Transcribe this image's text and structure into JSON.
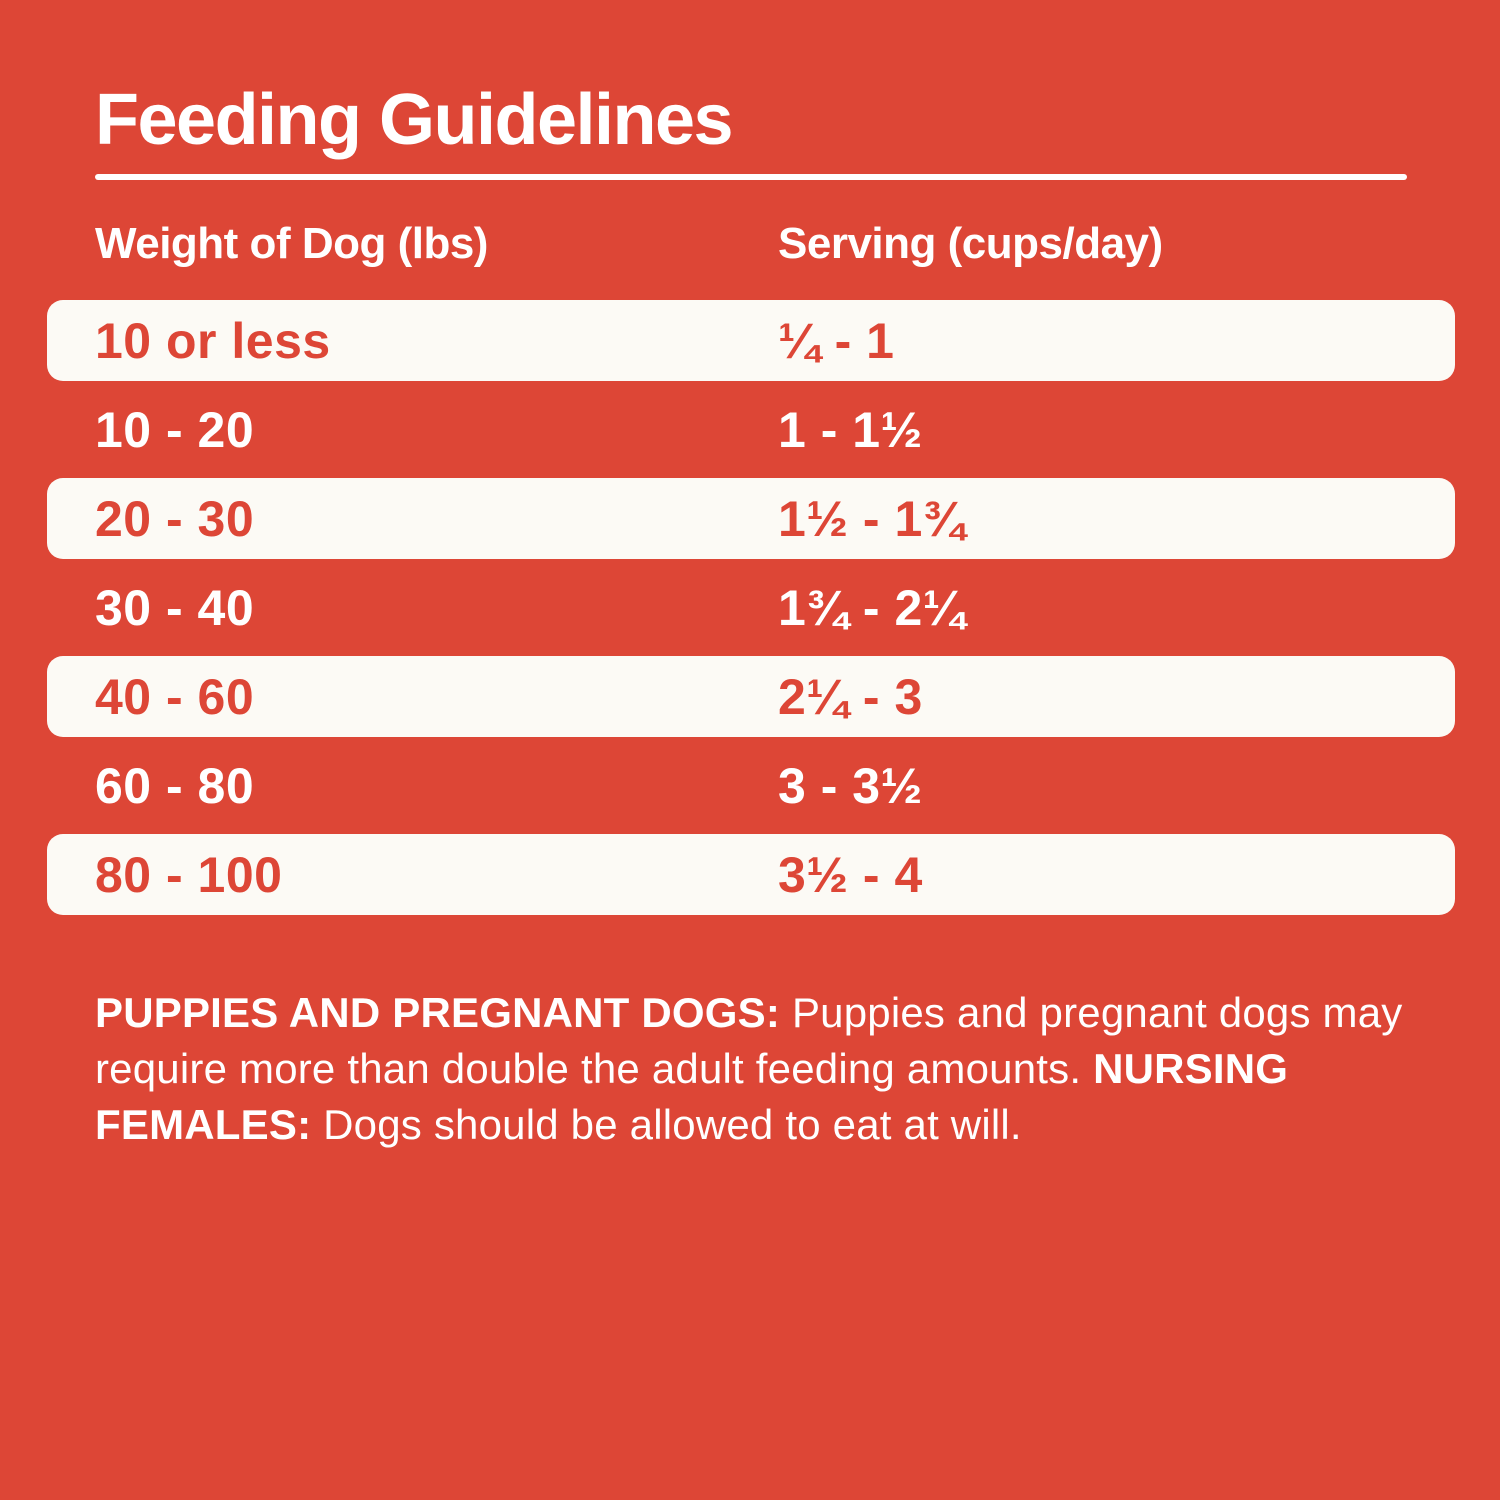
{
  "title": "Feeding Guidelines",
  "colors": {
    "background_red": "#DD4636",
    "row_white": "#FCFAF5",
    "red_text": "#DD4636",
    "white_text": "#FFFFFF"
  },
  "table": {
    "columns": [
      "Weight of Dog (lbs)",
      "Serving (cups/day)"
    ],
    "rows": [
      {
        "weight": "10 or less",
        "serving": "¼ - 1"
      },
      {
        "weight": "10 - 20",
        "serving": "1 - 1½"
      },
      {
        "weight": "20 - 30",
        "serving": "1½ - 1¾"
      },
      {
        "weight": "30 - 40",
        "serving": "1¾ - 2¼"
      },
      {
        "weight": "40 - 60",
        "serving": "2¼ - 3"
      },
      {
        "weight": "60 - 80",
        "serving": "3 - 3½"
      },
      {
        "weight": "80 - 100",
        "serving": "3½ - 4"
      }
    ]
  },
  "notes": {
    "segments": [
      {
        "text": "PUPPIES AND PREGNANT DOGS: ",
        "bold": true
      },
      {
        "text": "Puppies and pregnant dogs may require more than double the adult feeding amounts. ",
        "bold": false
      },
      {
        "text": "NURSING FEMALES: ",
        "bold": true
      },
      {
        "text": "Dogs should be allowed to eat at will.",
        "bold": false
      }
    ]
  }
}
